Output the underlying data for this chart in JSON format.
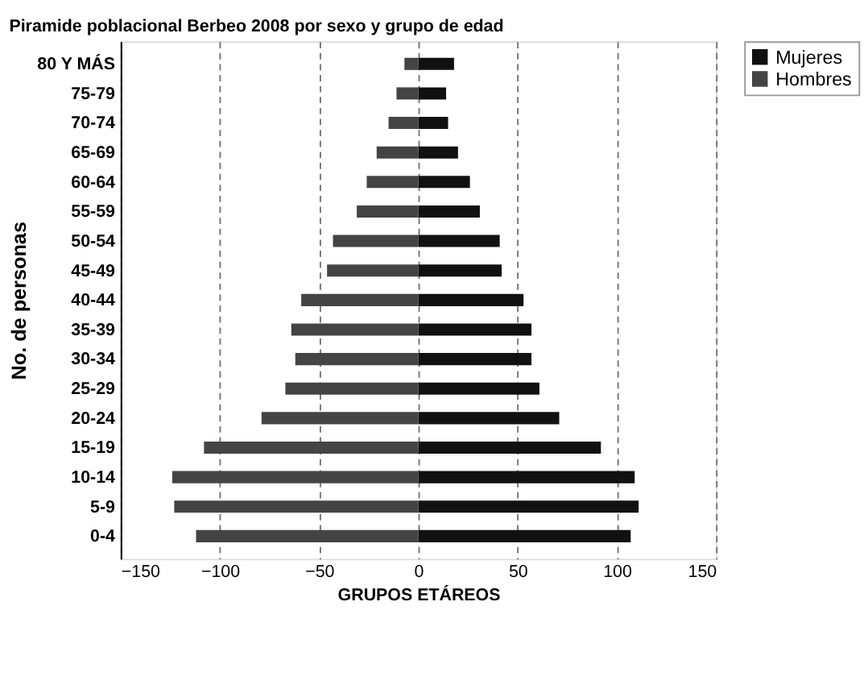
{
  "chart_data": {
    "type": "bar",
    "orientation": "horizontal",
    "stacked": true,
    "title": "Piramide poblacional Berbeo 2008 por sexo y grupo de edad",
    "xlabel": "GRUPOS ETÁREOS",
    "ylabel": "No. de personas",
    "categories": [
      "80 Y MÁS",
      "75-79",
      "70-74",
      "65-69",
      "60-64",
      "55-59",
      "50-54",
      "45-49",
      "40-44",
      "35-39",
      "30-34",
      "25-29",
      "20-24",
      "15-19",
      "10-14",
      "5-9",
      "0-4"
    ],
    "series": [
      {
        "name": "Mujeres",
        "color": "#111111",
        "values": [
          18,
          14,
          15,
          20,
          26,
          31,
          41,
          42,
          53,
          57,
          57,
          61,
          71,
          92,
          109,
          111,
          107
        ]
      },
      {
        "name": "Hombres",
        "color": "#444444",
        "values": [
          -7,
          -11,
          -15,
          -21,
          -26,
          -31,
          -43,
          -46,
          -59,
          -64,
          -62,
          -67,
          -79,
          -108,
          -124,
          -123,
          -112
        ]
      }
    ],
    "xlim": [
      -150,
      150
    ],
    "xticks": [
      -150,
      -100,
      -50,
      0,
      50,
      100,
      150
    ],
    "grid": "x",
    "legend": "right"
  }
}
